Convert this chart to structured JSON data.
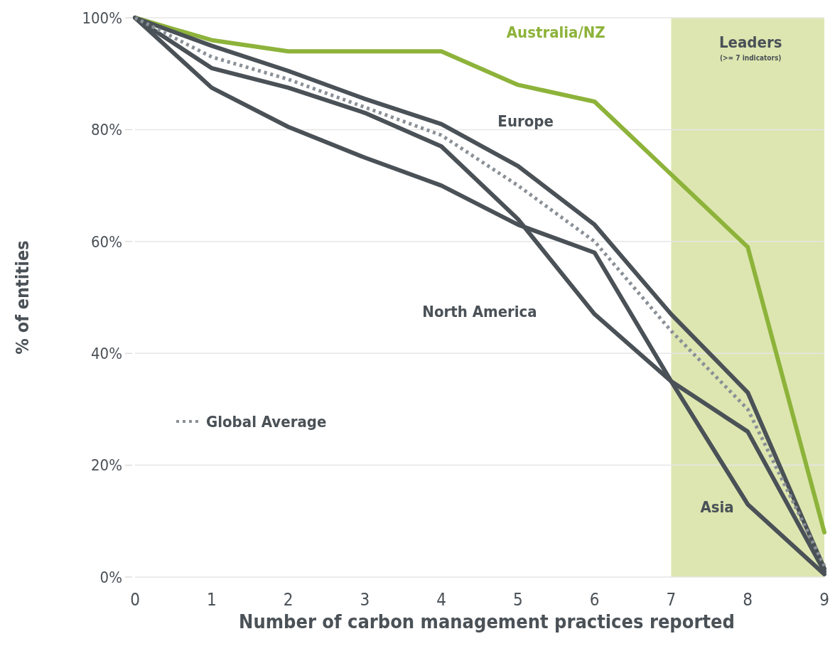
{
  "chart_data": {
    "type": "line",
    "xlabel": "Number of carbon management practices reported",
    "ylabel": "% of entities",
    "x": [
      0,
      1,
      2,
      3,
      4,
      5,
      6,
      7,
      8,
      9
    ],
    "xlim": [
      0,
      9
    ],
    "xticks": [
      0,
      1,
      2,
      3,
      4,
      5,
      6,
      7,
      8,
      9
    ],
    "ylim": [
      0,
      100
    ],
    "yticks": [
      {
        "value": 0,
        "label": "0%"
      },
      {
        "value": 20,
        "label": "20%"
      },
      {
        "value": 40,
        "label": "40%"
      },
      {
        "value": 60,
        "label": "60%"
      },
      {
        "value": 80,
        "label": "80%"
      },
      {
        "value": 100,
        "label": "100%"
      }
    ],
    "grid": "y",
    "legend": "left",
    "bands": [
      {
        "axis": "x",
        "from": 7,
        "to": 9,
        "label": "Leaders",
        "color": "#dde6b0"
      }
    ],
    "annotations": [
      "(>= 7 indicators)"
    ],
    "series": [
      {
        "name": "Australia/NZ",
        "color": "#8db33a",
        "values": [
          100,
          96,
          94,
          94,
          94,
          88,
          85,
          72,
          59,
          8
        ]
      },
      {
        "name": "Europe",
        "color": "#4a5157",
        "values": [
          100,
          95,
          90.5,
          85.5,
          81,
          73.5,
          63,
          47,
          33,
          1.5
        ]
      },
      {
        "name": "North America",
        "color": "#4a5157",
        "values": [
          100,
          91,
          87.5,
          83,
          77,
          64,
          47,
          35,
          26,
          1
        ]
      },
      {
        "name": "Asia",
        "color": "#4a5157",
        "values": [
          100,
          87.5,
          80.5,
          75,
          70,
          63,
          58,
          35,
          13,
          0.5
        ]
      },
      {
        "name": "Global Average",
        "color": "#8a9096",
        "line_style": "dotted",
        "values": [
          100,
          93,
          89,
          84,
          79,
          70,
          60,
          44,
          30,
          2
        ]
      }
    ]
  }
}
